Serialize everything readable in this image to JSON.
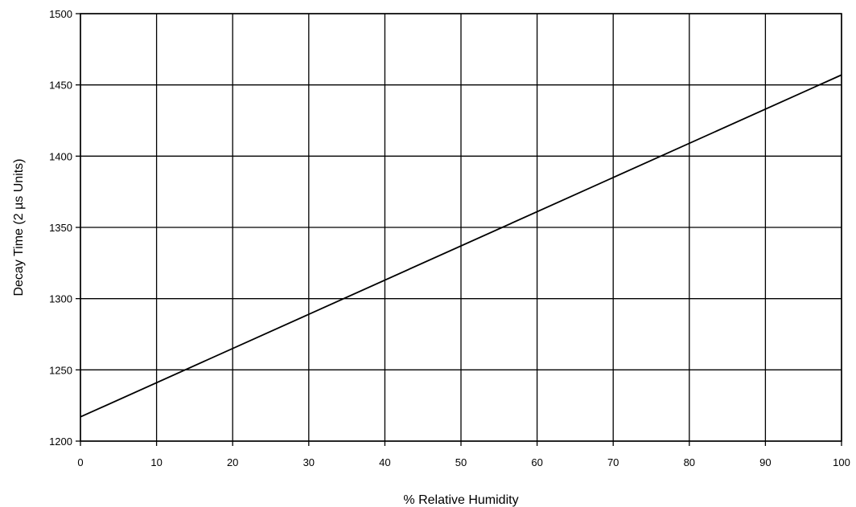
{
  "chart_data": {
    "type": "line",
    "title": "",
    "xlabel": "% Relative Humidity",
    "ylabel": "Decay Time (2 µs Units)",
    "xlim": [
      0,
      100
    ],
    "ylim": [
      1200,
      1500
    ],
    "x_ticks": [
      0,
      10,
      20,
      30,
      40,
      50,
      60,
      70,
      80,
      90,
      100
    ],
    "y_ticks": [
      1200,
      1250,
      1300,
      1350,
      1400,
      1450,
      1500
    ],
    "grid": true,
    "legend": "none",
    "series": [
      {
        "x": [
          0,
          100
        ],
        "values": [
          1217,
          1457
        ],
        "color": "#000000"
      }
    ]
  }
}
